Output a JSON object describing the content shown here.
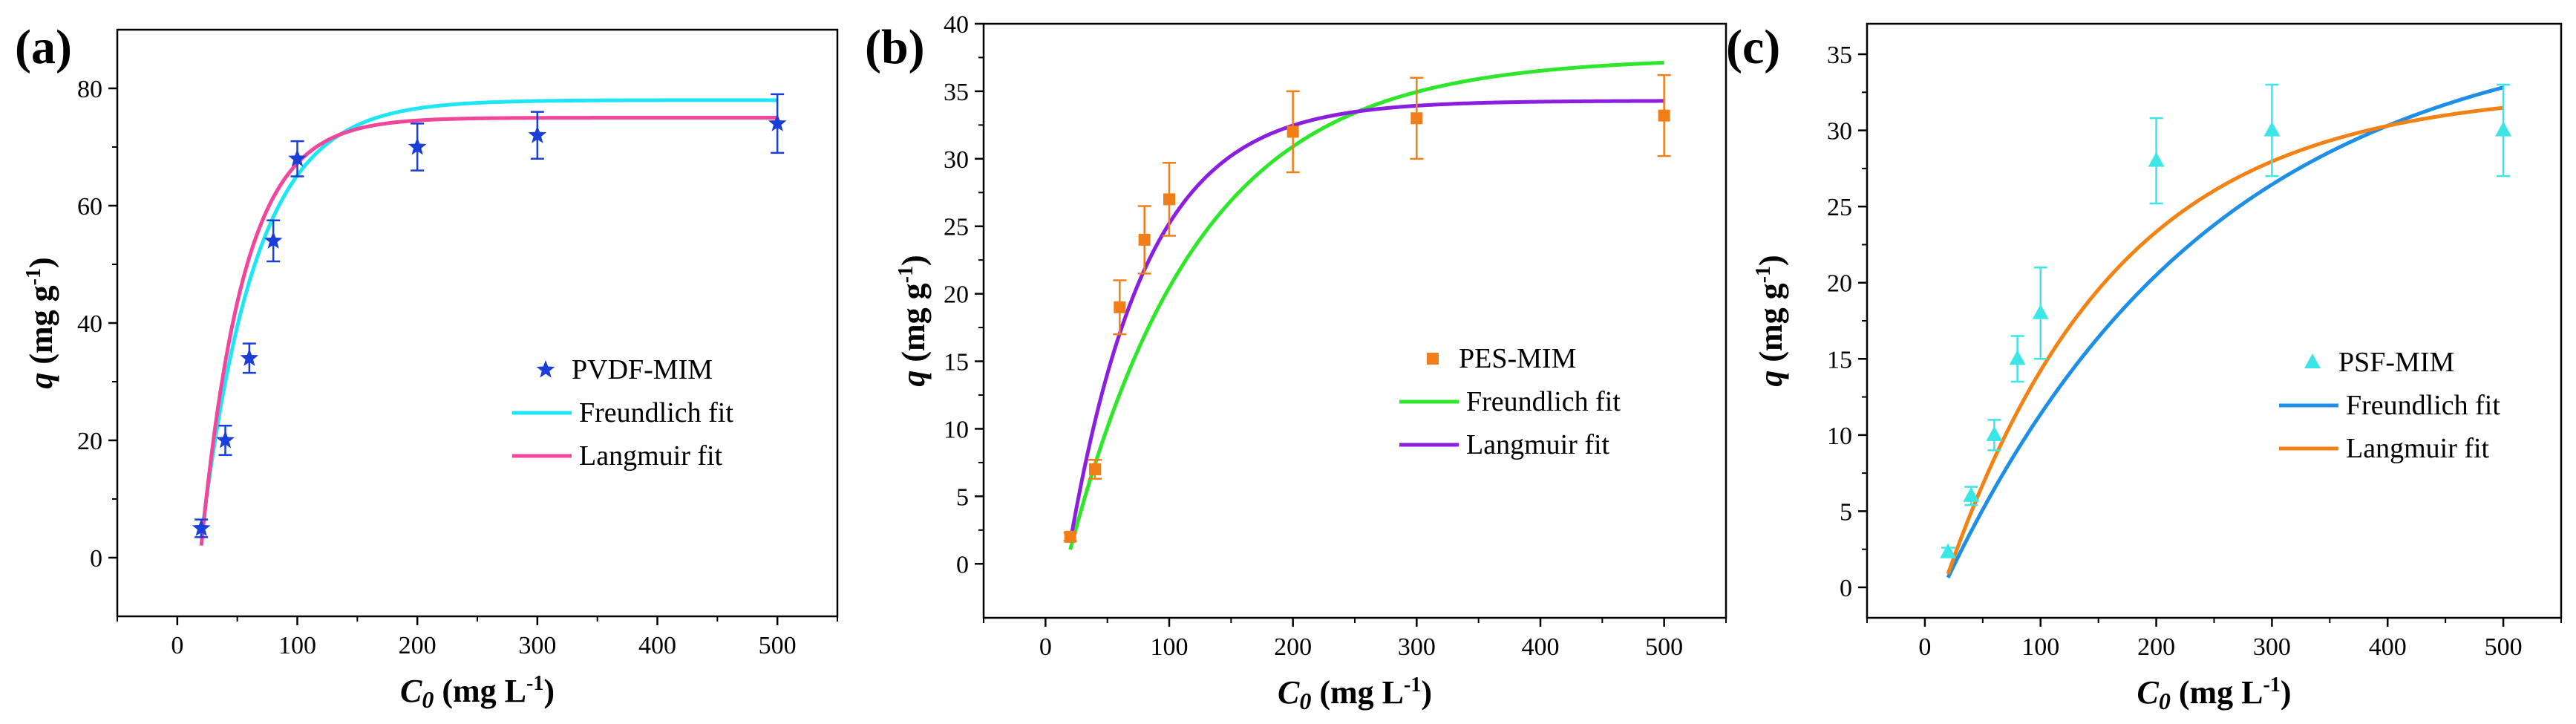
{
  "figure": {
    "description_free": true,
    "panels_count": 3
  },
  "chart_data": [
    {
      "type": "scatter",
      "panel_label": "(a)",
      "title": "",
      "xlabel_main": "C",
      "xlabel_sub": "0",
      "xlabel_units": "(mg L",
      "xlabel_exp": "-1",
      "xlabel_close": ")",
      "ylabel_main": "q",
      "ylabel_units": "(mg g",
      "ylabel_exp": "-1",
      "ylabel_close": ")",
      "xlim": [
        -50,
        550
      ],
      "ylim": [
        -10,
        90
      ],
      "xticks": [
        0,
        100,
        200,
        300,
        400,
        500
      ],
      "yticks": [
        0,
        20,
        40,
        60,
        80
      ],
      "legend_position": "center-right",
      "points": {
        "name": "PVDF-MIM",
        "marker": "star",
        "color": "#1a3fd9",
        "x": [
          20,
          40,
          60,
          80,
          100,
          200,
          300,
          500
        ],
        "y": [
          5,
          20,
          34,
          54,
          68,
          70,
          72,
          74
        ],
        "err": [
          1.5,
          2.5,
          2.5,
          3.5,
          3,
          4,
          4,
          5
        ]
      },
      "fits": [
        {
          "name": "Freundlich fit",
          "color": "#1fe6f5",
          "model": "sat",
          "params": {
            "qmax": 78,
            "x0": 18,
            "k": 0.022
          }
        },
        {
          "name": "Langmuir fit",
          "color": "#f0479b",
          "model": "sat",
          "params": {
            "qmax": 75,
            "x0": 19,
            "k": 0.028
          }
        }
      ]
    },
    {
      "type": "scatter",
      "panel_label": "(b)",
      "title": "",
      "xlabel_main": "C",
      "xlabel_sub": "0",
      "xlabel_units": "(mg L",
      "xlabel_exp": "-1",
      "xlabel_close": ")",
      "ylabel_main": "q",
      "ylabel_units": "(mg g",
      "ylabel_exp": "-1",
      "ylabel_close": ")",
      "xlim": [
        -50,
        550
      ],
      "ylim": [
        -4,
        40
      ],
      "xticks": [
        0,
        100,
        200,
        300,
        400,
        500
      ],
      "yticks": [
        0,
        5,
        10,
        15,
        20,
        25,
        30,
        35,
        40
      ],
      "legend_position": "center-right",
      "points": {
        "name": "PES-MIM",
        "marker": "square",
        "color": "#f07f1a",
        "x": [
          20,
          40,
          60,
          80,
          100,
          200,
          300,
          500
        ],
        "y": [
          2,
          7,
          19,
          24,
          27,
          32,
          33,
          33.2
        ],
        "err": [
          0.3,
          0.7,
          2,
          2.5,
          2.7,
          3,
          3,
          3
        ]
      },
      "fits": [
        {
          "name": "Freundlich fit",
          "color": "#2ee62a",
          "model": "sat",
          "params": {
            "qmax": 37.5,
            "x0": 17,
            "k": 0.0095
          }
        },
        {
          "name": "Langmuir fit",
          "color": "#8a1fe0",
          "model": "sat",
          "params": {
            "qmax": 34.3,
            "x0": 17,
            "k": 0.016
          }
        }
      ]
    },
    {
      "type": "scatter",
      "panel_label": "(c)",
      "title": "",
      "xlabel_main": "C",
      "xlabel_sub": "0",
      "xlabel_units": "(mg L",
      "xlabel_exp": "-1",
      "xlabel_close": ")",
      "ylabel_main": "q",
      "ylabel_units": "(mg g",
      "ylabel_exp": "-1",
      "ylabel_close": ")",
      "xlim": [
        -50,
        550
      ],
      "ylim": [
        -2,
        37
      ],
      "xticks": [
        0,
        100,
        200,
        300,
        400,
        500
      ],
      "yticks": [
        0,
        5,
        10,
        15,
        20,
        25,
        30,
        35
      ],
      "legend_position": "center-right",
      "points": {
        "name": "PSF-MIM",
        "marker": "triangle",
        "color": "#3de6e6",
        "x": [
          20,
          40,
          60,
          80,
          100,
          200,
          300,
          500
        ],
        "y": [
          2.3,
          6,
          10,
          15,
          18,
          28,
          30,
          30
        ],
        "err": [
          0.3,
          0.6,
          1,
          1.5,
          3,
          2.8,
          3,
          3
        ]
      },
      "fits": [
        {
          "name": "Freundlich fit",
          "color": "#1e8fe6",
          "model": "sat",
          "params": {
            "qmax": 37.5,
            "x0": 16,
            "k": 0.0043
          }
        },
        {
          "name": "Langmuir fit",
          "color": "#f28214",
          "model": "sat",
          "params": {
            "qmax": 32.7,
            "x0": 16,
            "k": 0.0068
          }
        }
      ]
    }
  ]
}
